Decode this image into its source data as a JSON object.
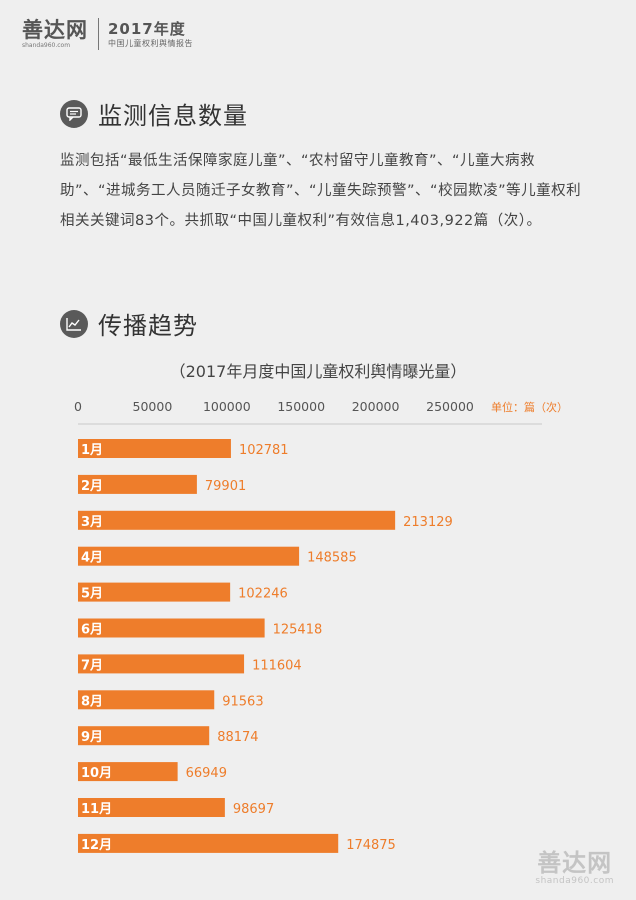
{
  "header": {
    "logo": "善达网",
    "logo_url": "shanda960.com",
    "year_title": "2017年度",
    "report_subtitle": "中国儿童权利舆情报告"
  },
  "section1": {
    "title": "监测信息数量",
    "icon": "chat-bubble-icon",
    "paragraph": "监测包括“最低生活保障家庭儿童”、“农村留守儿童教育”、“儿童大病救助”、“进城务工人员随迁子女教育”、“儿童失踪预警”、“校园欺凌”等儿童权利相关关键词83个。共抓取“中国儿童权利”有效信息1,403,922篇（次）。"
  },
  "section2": {
    "title": "传播趋势",
    "icon": "trend-chart-icon"
  },
  "colors": {
    "bar": "#ee7d2b",
    "label": "#ee7d2b",
    "background": "#efefef"
  },
  "chart_data": {
    "type": "bar",
    "orientation": "horizontal",
    "title": "（2017年月度中国儿童权利舆情曝光量）",
    "unit_label": "单位：篇（次）",
    "categories": [
      "1月",
      "2月",
      "3月",
      "4月",
      "5月",
      "6月",
      "7月",
      "8月",
      "9月",
      "10月",
      "11月",
      "12月"
    ],
    "values": [
      102781,
      79901,
      213129,
      148585,
      102246,
      125418,
      111604,
      91563,
      88174,
      66949,
      98697,
      174875
    ],
    "x_ticks": [
      0,
      50000,
      100000,
      150000,
      200000,
      250000
    ],
    "xlim": [
      0,
      250000
    ],
    "axis_position": "top",
    "grid": false
  },
  "watermark": {
    "logo": "善达网",
    "url": "shanda960.com"
  }
}
